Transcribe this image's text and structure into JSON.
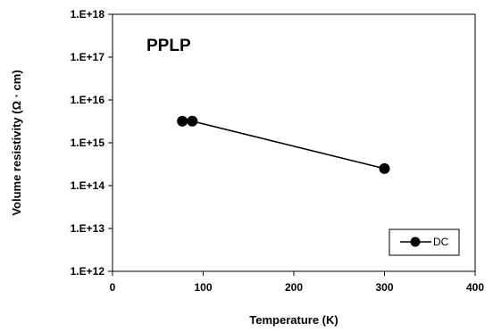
{
  "chart_data": {
    "type": "scatter",
    "annotation": "PPLP",
    "xlabel": "Temperature (K)",
    "ylabel": "Volume resistivity (Ω · cm)",
    "xlim": [
      0,
      400
    ],
    "ylim": [
      1000000000000.0,
      1e+18
    ],
    "y_scale": "log",
    "x_ticks": [
      0,
      100,
      200,
      300,
      400
    ],
    "x_tick_labels": [
      "0",
      "100",
      "200",
      "300",
      "400"
    ],
    "y_ticks": [
      1000000000000.0,
      10000000000000.0,
      100000000000000.0,
      1000000000000000.0,
      1e+16,
      1e+17,
      1e+18
    ],
    "y_tick_labels": [
      "1.E+12",
      "1.E+13",
      "1.E+14",
      "1.E+15",
      "1.E+16",
      "1.E+17",
      "1.E+18"
    ],
    "grid": false,
    "legend_position": "bottom-right",
    "series": [
      {
        "name": "DC",
        "color": "#000000",
        "marker": "circle",
        "line": true,
        "x": [
          77,
          88,
          300
        ],
        "y": [
          3200000000000000.0,
          3200000000000000.0,
          250000000000000.0
        ]
      }
    ]
  }
}
